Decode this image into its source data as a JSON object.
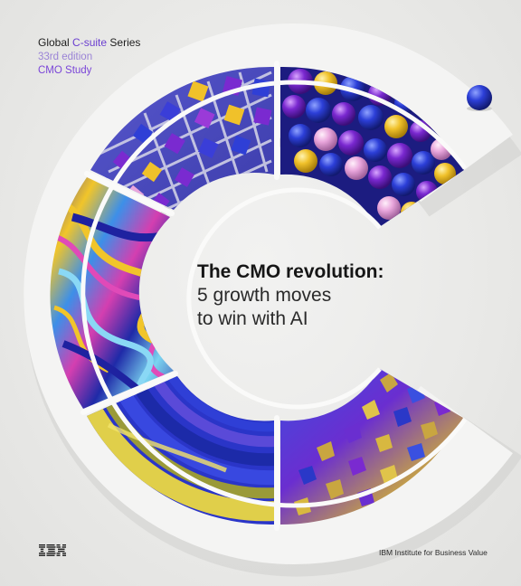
{
  "series": {
    "prefix": "Global",
    "highlight": "C-suite",
    "suffix": "Series",
    "edition": "33rd edition",
    "study": "CMO Study"
  },
  "headline": {
    "title": "The CMO revolution:",
    "subtitle_line1": "5 growth moves",
    "subtitle_line2": "to win with AI"
  },
  "footer": {
    "logo_text": "IBM",
    "institute": "IBM Institute for Business Value"
  },
  "colors": {
    "accent_purple": "#6b3fd0",
    "blue": "#2f3fd6",
    "yellow": "#f0c12a",
    "pink": "#e9a6dc"
  }
}
